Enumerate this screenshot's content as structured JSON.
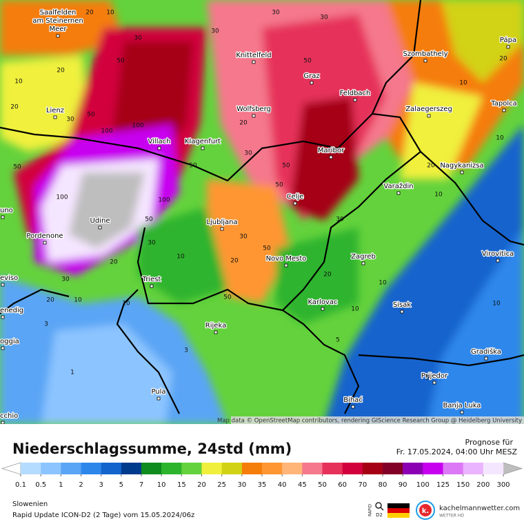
{
  "map": {
    "cities": [
      {
        "lines": [
          "Saalfelden",
          "am Steinernen",
          "Meer"
        ]
      },
      {
        "lines": [
          "Knittelfeld"
        ]
      },
      {
        "lines": [
          "Szombathely"
        ]
      },
      {
        "lines": [
          "Pápa"
        ]
      },
      {
        "lines": [
          "Graz"
        ]
      },
      {
        "lines": [
          "Feldbach"
        ]
      },
      {
        "lines": [
          "Lienz"
        ]
      },
      {
        "lines": [
          "Wolfsberg"
        ]
      },
      {
        "lines": [
          "Zalaegerszeg"
        ]
      },
      {
        "lines": [
          "Tapolca"
        ]
      },
      {
        "lines": [
          "Villach"
        ]
      },
      {
        "lines": [
          "Klagenfurt"
        ]
      },
      {
        "lines": [
          "Maribor"
        ]
      },
      {
        "lines": [
          "Nagykanizsa"
        ]
      },
      {
        "lines": [
          "Varaždin"
        ]
      },
      {
        "lines": [
          "Celje"
        ]
      },
      {
        "lines": [
          "Udine"
        ]
      },
      {
        "lines": [
          "Ljubljana"
        ]
      },
      {
        "lines": [
          "uno"
        ]
      },
      {
        "lines": [
          "Pordenone"
        ]
      },
      {
        "lines": [
          "Zagreb"
        ]
      },
      {
        "lines": [
          "Novo Mesto"
        ]
      },
      {
        "lines": [
          "Virovitica"
        ]
      },
      {
        "lines": [
          "eviso"
        ]
      },
      {
        "lines": [
          "Triest"
        ]
      },
      {
        "lines": [
          "Karlovac"
        ]
      },
      {
        "lines": [
          "Sisak"
        ]
      },
      {
        "lines": [
          "enedig"
        ]
      },
      {
        "lines": [
          "Rijeka"
        ]
      },
      {
        "lines": [
          "oggia"
        ]
      },
      {
        "lines": [
          "Gradiška"
        ]
      },
      {
        "lines": [
          "Prijedor"
        ]
      },
      {
        "lines": [
          "Pula"
        ]
      },
      {
        "lines": [
          "Bihać"
        ]
      },
      {
        "lines": [
          "Banja Luka"
        ]
      },
      {
        "lines": [
          "cchio"
        ]
      }
    ],
    "contour_labels": [
      30,
      30,
      30,
      10,
      20,
      50,
      20,
      10,
      20,
      30,
      50,
      100,
      100,
      50,
      50,
      100,
      100,
      50,
      30,
      20,
      30,
      20,
      10,
      3,
      1,
      3,
      10,
      10,
      20,
      30,
      50,
      50,
      30,
      20,
      10,
      10,
      5,
      5,
      10,
      10,
      20,
      10,
      10,
      20,
      50,
      30,
      50,
      50,
      30,
      20
    ],
    "attribution": "Map data © OpenStreetMap contributors, rendering GIScience Research Group @ Heidelberg University"
  },
  "legend": {
    "title": "Niederschlagssumme, 24std (mm)",
    "forecast_heading": "Prognose für",
    "forecast_time": "Fr. 17.05.2024, 04:00 Uhr MESZ",
    "ticks": [
      0.1,
      0.5,
      1,
      2,
      3,
      5,
      7,
      10,
      15,
      20,
      25,
      30,
      35,
      40,
      45,
      50,
      60,
      70,
      80,
      90,
      100,
      125,
      150,
      200,
      300
    ],
    "colors": [
      "#b4dcff",
      "#8cc4ff",
      "#5aa5f5",
      "#2d87eb",
      "#1464cd",
      "#003a8c",
      "#0f8c1e",
      "#2db42d",
      "#64d23c",
      "#f0f03c",
      "#d2d214",
      "#f57d0a",
      "#ff9632",
      "#ffb478",
      "#f5788c",
      "#e6325a",
      "#d2003c",
      "#a50014",
      "#820028",
      "#8c00b4",
      "#c800f0",
      "#dc78f5",
      "#ebb4ff",
      "#f5e6ff"
    ],
    "below_color": "#ffffff",
    "above_color": "#bebebe"
  },
  "footer": {
    "region": "Slowenien",
    "model": "Rapid Update ICON-D2 (2 Tage) vom  15.05.2024/06z",
    "rapid": "RAPID",
    "d2": "D2",
    "brand": "kachelmannwetter.com",
    "brand_sub": "WETTER HD",
    "logo_letter": "k."
  }
}
